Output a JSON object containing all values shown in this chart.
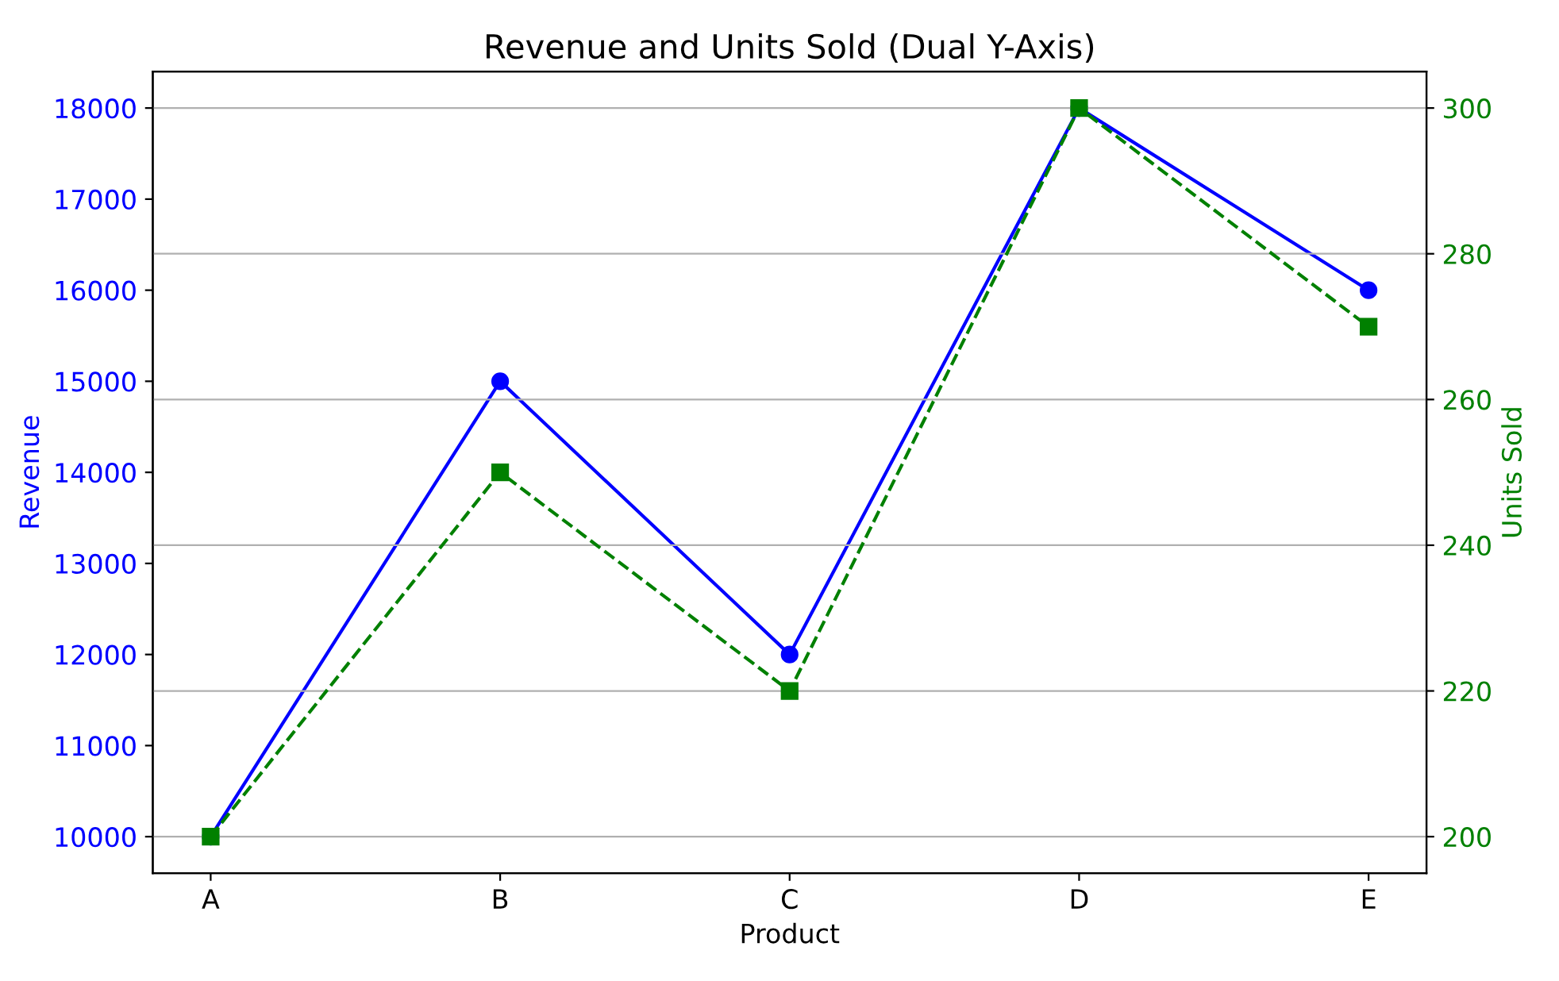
{
  "chart_data": {
    "type": "line",
    "title": "Revenue and Units Sold (Dual Y-Axis)",
    "xlabel": "Product",
    "ylabel": "Revenue",
    "y2label": "Units Sold",
    "categories": [
      "A",
      "B",
      "C",
      "D",
      "E"
    ],
    "series": [
      {
        "color": "#0000ff",
        "marker": "circle",
        "line_style": "solid",
        "values": [
          10000,
          15000,
          12000,
          18000,
          16000
        ]
      },
      {
        "color": "#008000",
        "marker": "square",
        "line_style": "dashed",
        "axis": "y2",
        "values": [
          200,
          250,
          220,
          300,
          270
        ]
      }
    ],
    "ylim": [
      9600,
      18400
    ],
    "yticks": [
      10000,
      11000,
      12000,
      13000,
      14000,
      15000,
      16000,
      17000,
      18000
    ],
    "y2lim": [
      195,
      305
    ],
    "y2ticks": [
      200,
      220,
      240,
      260,
      280,
      300
    ],
    "grid": "y2"
  }
}
